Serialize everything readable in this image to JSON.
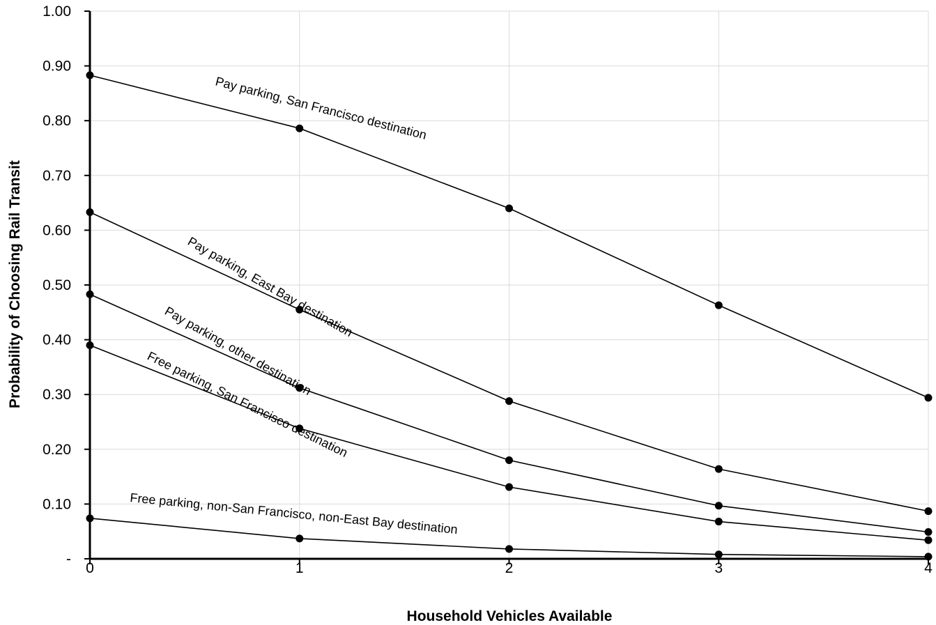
{
  "chart_data": {
    "type": "line",
    "xlabel": "Household Vehicles Available",
    "ylabel": "Probability of Choosing Rail Transit",
    "x": [
      0,
      1,
      2,
      3,
      4
    ],
    "xticks": [
      "0",
      "1",
      "2",
      "3",
      "4"
    ],
    "ylim": [
      0,
      1
    ],
    "yticks": [
      {
        "value": 0,
        "label": "-"
      },
      {
        "value": 0.1,
        "label": "0.10"
      },
      {
        "value": 0.2,
        "label": "0.20"
      },
      {
        "value": 0.3,
        "label": "0.30"
      },
      {
        "value": 0.4,
        "label": "0.40"
      },
      {
        "value": 0.5,
        "label": "0.50"
      },
      {
        "value": 0.6,
        "label": "0.60"
      },
      {
        "value": 0.7,
        "label": "0.70"
      },
      {
        "value": 0.8,
        "label": "0.80"
      },
      {
        "value": 0.9,
        "label": "0.90"
      },
      {
        "value": 1.0,
        "label": "1.00"
      }
    ],
    "grid": true,
    "series": [
      {
        "name": "Pay parking, San Francisco destination",
        "values": [
          0.883,
          0.786,
          0.64,
          0.463,
          0.294
        ]
      },
      {
        "name": "Pay parking, East Bay destination",
        "values": [
          0.633,
          0.455,
          0.288,
          0.164,
          0.087
        ]
      },
      {
        "name": "Pay parking, other destination",
        "values": [
          0.483,
          0.312,
          0.18,
          0.097,
          0.049
        ]
      },
      {
        "name": "Free parking, San Francisco destination",
        "values": [
          0.39,
          0.238,
          0.131,
          0.068,
          0.034
        ]
      },
      {
        "name": "Free parking, non-San Francisco, non-East Bay destination",
        "values": [
          0.074,
          0.037,
          0.018,
          0.008,
          0.004
        ]
      }
    ]
  }
}
